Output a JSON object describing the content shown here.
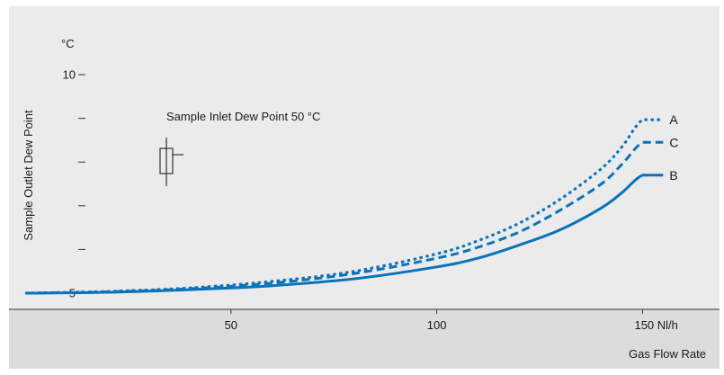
{
  "chart_data": {
    "type": "line",
    "title": "",
    "ylabel": "Sample Outlet Dew Point",
    "yunit": "°C",
    "xlabel": "Gas Flow Rate",
    "xunit": "Nl/h",
    "xlim": [
      0,
      170
    ],
    "ylim": [
      5,
      10
    ],
    "x_ticks": [
      {
        "value": 50,
        "label": "50"
      },
      {
        "value": 100,
        "label": "100"
      },
      {
        "value": 150,
        "label": "150 Nl/h"
      }
    ],
    "y_ticks": [
      {
        "value": 5,
        "label": "5"
      },
      {
        "value": 6,
        "label": ""
      },
      {
        "value": 7,
        "label": ""
      },
      {
        "value": 8,
        "label": ""
      },
      {
        "value": 9,
        "label": ""
      },
      {
        "value": 10,
        "label": "10"
      }
    ],
    "annotation": "Sample Inlet Dew Point 50 °C",
    "grid": false,
    "series": [
      {
        "name": "A",
        "style": "dotted",
        "x": [
          0,
          20,
          40,
          60,
          80,
          100,
          110,
          120,
          130,
          140,
          145,
          150,
          155
        ],
        "y": [
          5.0,
          5.04,
          5.12,
          5.27,
          5.5,
          5.9,
          6.2,
          6.6,
          7.15,
          7.85,
          8.35,
          8.97,
          8.97
        ]
      },
      {
        "name": "C",
        "style": "dashed",
        "x": [
          0,
          20,
          40,
          60,
          80,
          100,
          110,
          120,
          130,
          140,
          145,
          150,
          155
        ],
        "y": [
          5.0,
          5.03,
          5.1,
          5.23,
          5.45,
          5.8,
          6.05,
          6.4,
          6.9,
          7.5,
          7.95,
          8.45,
          8.45
        ]
      },
      {
        "name": "B",
        "style": "solid",
        "x": [
          0,
          20,
          40,
          60,
          80,
          100,
          110,
          120,
          130,
          140,
          145,
          150,
          155
        ],
        "y": [
          5.0,
          5.02,
          5.08,
          5.17,
          5.33,
          5.6,
          5.8,
          6.1,
          6.45,
          6.95,
          7.3,
          7.7,
          7.7
        ]
      }
    ]
  },
  "colors": {
    "line": "#0b73b9",
    "plot_bg": "#ebebeb",
    "axis_band_bg": "#dcdcdc",
    "axis": "#333333",
    "symbol": "#333333"
  },
  "icons": {
    "symbol": "filter-symbol-icon"
  }
}
